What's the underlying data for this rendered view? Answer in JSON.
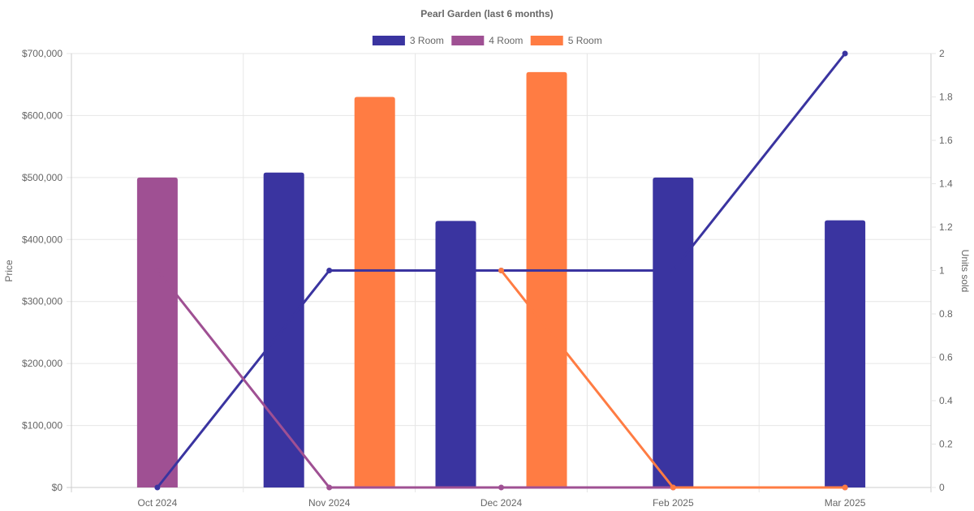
{
  "chart_data": {
    "type": "bar",
    "title": "Pearl Garden (last 6 months)",
    "categories": [
      "Oct 2024",
      "Nov 2024",
      "Dec 2024",
      "Feb 2025",
      "Mar 2025"
    ],
    "legend_position": "top",
    "grid": true,
    "y_left": {
      "label": "Price",
      "min": 0,
      "max": 700000,
      "ticks": [
        0,
        100000,
        200000,
        300000,
        400000,
        500000,
        600000,
        700000
      ],
      "tick_labels": [
        "$0",
        "$100,000",
        "$200,000",
        "$300,000",
        "$400,000",
        "$500,000",
        "$600,000",
        "$700,000"
      ]
    },
    "y_right": {
      "label": "Units sold",
      "min": 0,
      "max": 2,
      "ticks": [
        0,
        0.2,
        0.4,
        0.6,
        0.8,
        1,
        1.2,
        1.4,
        1.6,
        1.8,
        2
      ],
      "tick_labels": [
        "0",
        "0.2",
        "0.4",
        "0.6",
        "0.8",
        "1",
        "1.2",
        "1.4",
        "1.6",
        "1.8",
        "2"
      ]
    },
    "series": [
      {
        "name": "3 Room",
        "color": "#3a34a0",
        "price": [
          null,
          508000,
          430000,
          500000,
          431000
        ],
        "units": [
          0,
          1,
          1,
          1,
          2
        ]
      },
      {
        "name": "4 Room",
        "color": "#9f5093",
        "price": [
          500000,
          null,
          null,
          null,
          null
        ],
        "units": [
          1,
          0,
          0,
          0,
          0
        ]
      },
      {
        "name": "5 Room",
        "color": "#ff7c43",
        "price": [
          null,
          630000,
          670000,
          null,
          null
        ],
        "units": [
          null,
          null,
          1,
          0,
          0
        ]
      }
    ]
  }
}
